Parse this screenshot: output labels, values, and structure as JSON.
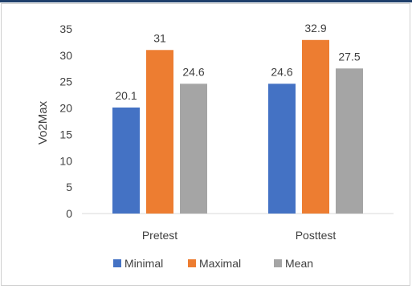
{
  "chart_data": {
    "type": "bar",
    "categories": [
      "Pretest",
      "Posttest"
    ],
    "series": [
      {
        "name": "Minimal",
        "values": [
          20.1,
          24.6
        ],
        "color": "#4472c4"
      },
      {
        "name": "Maximal",
        "values": [
          31,
          32.9
        ],
        "color": "#ed7d31"
      },
      {
        "name": "Mean",
        "values": [
          24.6,
          27.5
        ],
        "color": "#a5a5a5"
      }
    ],
    "data_labels": [
      [
        "20.1",
        "31",
        "24.6"
      ],
      [
        "24.6",
        "32.9",
        "27.5"
      ]
    ],
    "ylabel": "Vo2Max",
    "xlabel": "",
    "ylim": [
      0,
      35
    ],
    "yticks": [
      0,
      5,
      10,
      15,
      20,
      25,
      30,
      35
    ],
    "grid": false,
    "legend_position": "bottom"
  },
  "colors": {
    "frame_accent": "#1f3f6b",
    "axis": "#d9d9d9"
  }
}
